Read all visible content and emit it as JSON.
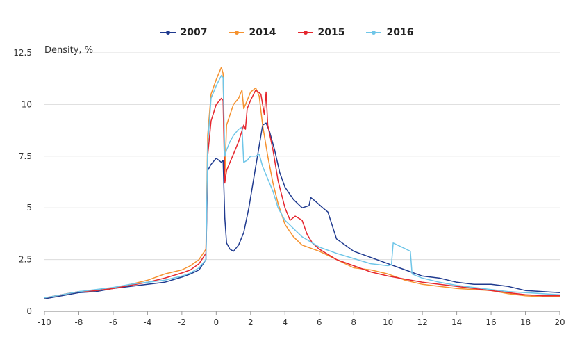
{
  "chart_data": {
    "type": "line",
    "title": "",
    "ylabel": "Density, %",
    "xlabel": "",
    "xlim": [
      -10,
      20
    ],
    "ylim": [
      0,
      12.5
    ],
    "x_ticks": [
      "-10",
      "-8",
      "-6",
      "-4",
      "-2",
      "0",
      "2",
      "4",
      "6",
      "8",
      "10",
      "12",
      "14",
      "16",
      "18",
      "20"
    ],
    "y_ticks": [
      "0",
      "2.5",
      "5",
      "7.5",
      "10",
      "12.5"
    ],
    "grid": "horizontal",
    "legend_position": "top-center",
    "series": [
      {
        "name": "2007",
        "color": "#1f3a8f",
        "x": [
          -10,
          -9,
          -8,
          -7,
          -6,
          -5,
          -4,
          -3,
          -2,
          -1.5,
          -1,
          -0.6,
          -0.5,
          -0.3,
          0,
          0.3,
          0.4,
          0.5,
          0.6,
          0.8,
          1.0,
          1.3,
          1.6,
          1.9,
          2.2,
          2.5,
          2.7,
          2.9,
          3.1,
          3.4,
          3.7,
          4.0,
          4.5,
          5.0,
          5.4,
          5.5,
          5.8,
          6.2,
          6.5,
          7,
          8,
          9,
          10,
          11,
          12,
          13,
          14,
          15,
          16,
          17,
          18,
          19,
          20
        ],
        "values": [
          0.6,
          0.75,
          0.9,
          0.95,
          1.1,
          1.2,
          1.3,
          1.4,
          1.65,
          1.8,
          2.0,
          2.5,
          6.8,
          7.1,
          7.4,
          7.2,
          7.3,
          4.5,
          3.3,
          3.0,
          2.9,
          3.2,
          3.8,
          5.0,
          6.5,
          8.0,
          9.0,
          9.1,
          8.7,
          7.8,
          6.7,
          6.0,
          5.4,
          5.0,
          5.1,
          5.5,
          5.3,
          5.0,
          4.8,
          3.5,
          2.9,
          2.6,
          2.3,
          2.0,
          1.7,
          1.6,
          1.4,
          1.3,
          1.3,
          1.2,
          1.0,
          0.95,
          0.9
        ]
      },
      {
        "name": "2014",
        "color": "#f5922f",
        "x": [
          -10,
          -9,
          -8,
          -7,
          -6,
          -5,
          -4,
          -3,
          -2,
          -1.5,
          -1,
          -0.6,
          -0.5,
          -0.3,
          0,
          0.3,
          0.4,
          0.5,
          0.6,
          0.8,
          1.0,
          1.3,
          1.5,
          1.6,
          1.8,
          2.0,
          2.3,
          2.5,
          2.7,
          3.0,
          3.3,
          3.6,
          4.0,
          4.5,
          5.0,
          6,
          7,
          8,
          9,
          10,
          11,
          12,
          13,
          14,
          15,
          16,
          17,
          18,
          19,
          20
        ],
        "values": [
          0.65,
          0.8,
          0.95,
          1.0,
          1.1,
          1.3,
          1.5,
          1.8,
          2.0,
          2.2,
          2.5,
          3.0,
          8.5,
          10.5,
          11.2,
          11.8,
          11.5,
          6.5,
          9.0,
          9.5,
          10.0,
          10.3,
          10.7,
          9.8,
          10.2,
          10.6,
          10.8,
          10.4,
          9.0,
          7.5,
          6.2,
          5.2,
          4.2,
          3.6,
          3.2,
          2.9,
          2.5,
          2.1,
          2.0,
          1.8,
          1.5,
          1.3,
          1.2,
          1.1,
          1.05,
          1.0,
          0.85,
          0.75,
          0.7,
          0.7
        ]
      },
      {
        "name": "2015",
        "color": "#e5262e",
        "x": [
          -10,
          -9,
          -8,
          -7,
          -6,
          -5,
          -4,
          -3,
          -2,
          -1.5,
          -1,
          -0.6,
          -0.5,
          -0.3,
          0,
          0.3,
          0.4,
          0.5,
          0.6,
          0.8,
          1.0,
          1.3,
          1.6,
          1.7,
          1.8,
          2.0,
          2.3,
          2.6,
          2.8,
          2.9,
          3.0,
          3.3,
          3.6,
          4.0,
          4.3,
          4.6,
          5.0,
          5.3,
          5.6,
          6,
          7,
          8,
          9,
          10,
          11,
          12,
          13,
          14,
          15,
          16,
          17,
          18,
          19,
          20
        ],
        "values": [
          0.65,
          0.8,
          0.95,
          1.0,
          1.1,
          1.25,
          1.4,
          1.6,
          1.85,
          2.0,
          2.3,
          2.8,
          7.5,
          9.2,
          10.0,
          10.3,
          10.2,
          6.2,
          6.8,
          7.2,
          7.6,
          8.2,
          9.0,
          8.8,
          9.8,
          10.2,
          10.7,
          10.5,
          9.5,
          10.6,
          9.0,
          7.8,
          6.3,
          5.0,
          4.4,
          4.6,
          4.4,
          3.7,
          3.3,
          3.0,
          2.5,
          2.2,
          1.9,
          1.7,
          1.55,
          1.4,
          1.3,
          1.2,
          1.1,
          1.0,
          0.9,
          0.8,
          0.75,
          0.75
        ]
      },
      {
        "name": "2016",
        "color": "#6fc6e8",
        "x": [
          -10,
          -9,
          -8,
          -7,
          -6,
          -5,
          -4,
          -3,
          -2,
          -1.5,
          -1,
          -0.6,
          -0.5,
          -0.3,
          0,
          0.3,
          0.4,
          0.5,
          0.6,
          0.8,
          1.0,
          1.3,
          1.5,
          1.6,
          1.8,
          2.0,
          2.3,
          2.5,
          2.7,
          3.0,
          3.3,
          3.6,
          4.0,
          4.5,
          5.0,
          6,
          7,
          8,
          9,
          10,
          10.2,
          10.3,
          10.8,
          11.3,
          11.4,
          12,
          13,
          14,
          15,
          16,
          17,
          18,
          19,
          20
        ],
        "values": [
          0.65,
          0.8,
          0.95,
          1.05,
          1.15,
          1.3,
          1.4,
          1.5,
          1.7,
          1.85,
          2.1,
          2.5,
          8.0,
          10.3,
          10.9,
          11.4,
          11.3,
          7.5,
          7.8,
          8.2,
          8.5,
          8.8,
          8.9,
          7.2,
          7.3,
          7.5,
          7.5,
          7.6,
          7.0,
          6.4,
          5.8,
          5.0,
          4.4,
          4.0,
          3.6,
          3.1,
          2.8,
          2.55,
          2.3,
          2.2,
          2.25,
          3.3,
          3.1,
          2.9,
          1.8,
          1.6,
          1.4,
          1.25,
          1.15,
          1.05,
          0.95,
          0.9,
          0.85,
          0.8
        ]
      }
    ]
  }
}
